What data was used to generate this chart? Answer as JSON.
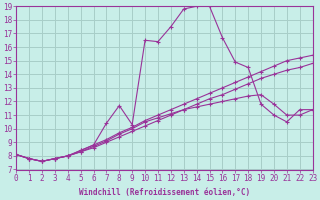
{
  "xlabel": "Windchill (Refroidissement éolien,°C)",
  "xlim": [
    0,
    23
  ],
  "ylim": [
    7,
    19
  ],
  "xticks": [
    0,
    1,
    2,
    3,
    4,
    5,
    6,
    7,
    8,
    9,
    10,
    11,
    12,
    13,
    14,
    15,
    16,
    17,
    18,
    19,
    20,
    21,
    22,
    23
  ],
  "yticks": [
    7,
    8,
    9,
    10,
    11,
    12,
    13,
    14,
    15,
    16,
    17,
    18,
    19
  ],
  "bg_color": "#c8eee8",
  "grid_color": "#a8cec8",
  "line_color": "#993399",
  "lines": [
    {
      "x": [
        0,
        1,
        2,
        3,
        4,
        5,
        6,
        7,
        8,
        9,
        10,
        11,
        12,
        13,
        14,
        15,
        16,
        17,
        18,
        19,
        20,
        21,
        22,
        23
      ],
      "y": [
        8.1,
        7.8,
        7.6,
        7.8,
        8.0,
        8.4,
        8.8,
        10.4,
        11.7,
        10.3,
        16.5,
        16.4,
        17.5,
        18.8,
        19.0,
        19.0,
        16.7,
        14.9,
        14.5,
        11.8,
        11.0,
        10.5,
        11.4,
        11.4
      ]
    },
    {
      "x": [
        0,
        1,
        2,
        3,
        4,
        5,
        6,
        7,
        8,
        9,
        10,
        11,
        12,
        13,
        14,
        15,
        16,
        17,
        18,
        19,
        20,
        21,
        22,
        23
      ],
      "y": [
        8.1,
        7.8,
        7.6,
        7.8,
        8.0,
        8.3,
        8.7,
        9.1,
        9.6,
        10.0,
        10.5,
        10.8,
        11.1,
        11.4,
        11.6,
        11.8,
        12.0,
        12.2,
        12.4,
        12.5,
        11.8,
        11.0,
        11.0,
        11.4
      ]
    },
    {
      "x": [
        0,
        1,
        2,
        3,
        4,
        5,
        6,
        7,
        8,
        9,
        10,
        11,
        12,
        13,
        14,
        15,
        16,
        17,
        18,
        19,
        20,
        21,
        22,
        23
      ],
      "y": [
        8.1,
        7.8,
        7.6,
        7.8,
        8.0,
        8.3,
        8.6,
        9.0,
        9.4,
        9.8,
        10.2,
        10.6,
        11.0,
        11.4,
        11.8,
        12.2,
        12.5,
        12.9,
        13.3,
        13.7,
        14.0,
        14.3,
        14.5,
        14.8
      ]
    },
    {
      "x": [
        0,
        1,
        2,
        3,
        4,
        5,
        6,
        7,
        8,
        9,
        10,
        11,
        12,
        13,
        14,
        15,
        16,
        17,
        18,
        19,
        20,
        21,
        22,
        23
      ],
      "y": [
        8.1,
        7.8,
        7.6,
        7.8,
        8.0,
        8.4,
        8.8,
        9.2,
        9.7,
        10.1,
        10.6,
        11.0,
        11.4,
        11.8,
        12.2,
        12.6,
        13.0,
        13.4,
        13.8,
        14.2,
        14.6,
        15.0,
        15.2,
        15.4
      ]
    }
  ]
}
